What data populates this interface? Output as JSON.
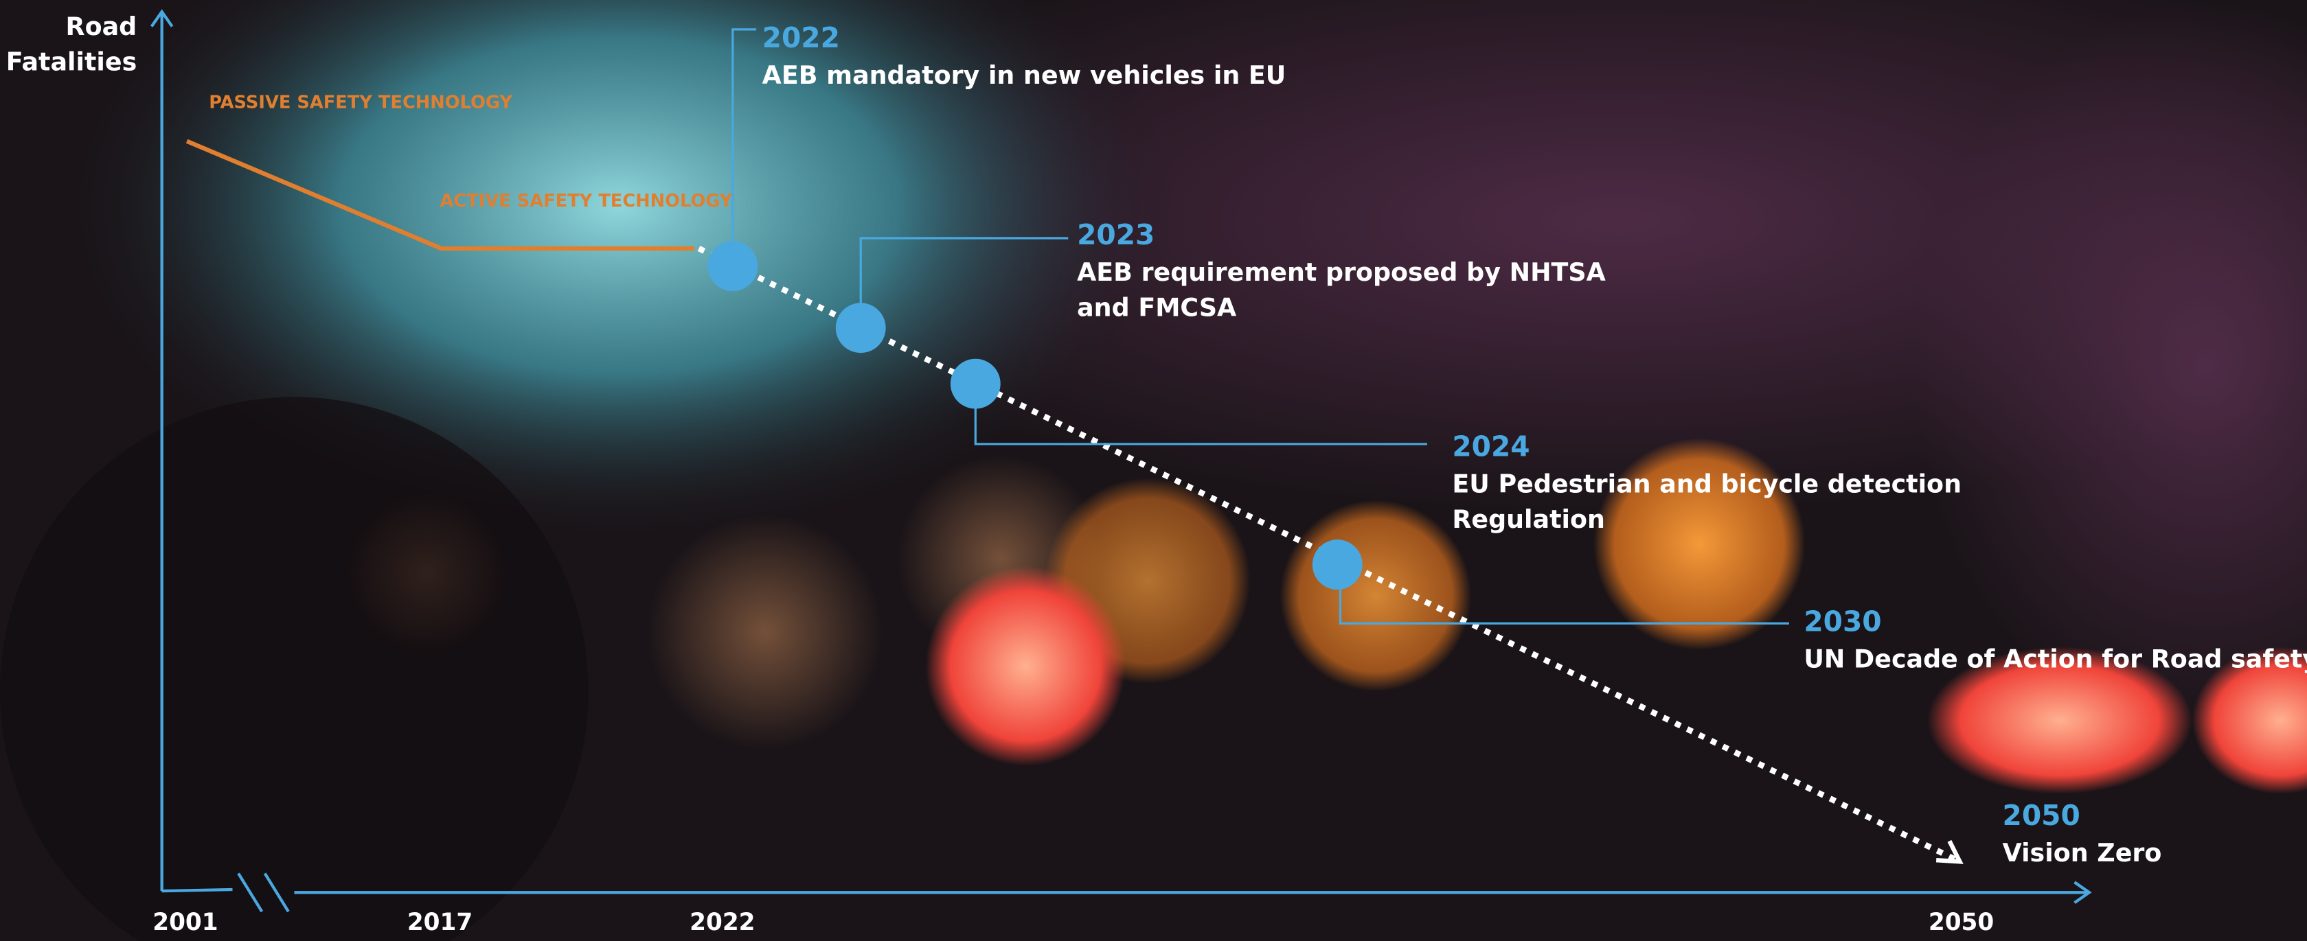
{
  "y_axis_label": [
    "Road",
    "Fatalities"
  ],
  "x_axis_labels": [
    "2001",
    "2017",
    "2022",
    "2050"
  ],
  "phases": [
    "PASSIVE SAFETY TECHNOLOGY",
    "ACTIVE SAFETY TECHNOLOGY"
  ],
  "milestones": [
    {
      "year": "2022",
      "lines": [
        "AEB mandatory in new vehicles in EU"
      ]
    },
    {
      "year": "2023",
      "lines": [
        "AEB requirement proposed by NHTSA",
        "and FMCSA"
      ]
    },
    {
      "year": "2024",
      "lines": [
        "EU Pedestrian and bicycle detection",
        "Regulation"
      ]
    },
    {
      "year": "2030",
      "lines": [
        "UN Decade of Action for Road safety"
      ]
    },
    {
      "year": "2050",
      "lines": [
        "Vision Zero"
      ]
    }
  ]
}
